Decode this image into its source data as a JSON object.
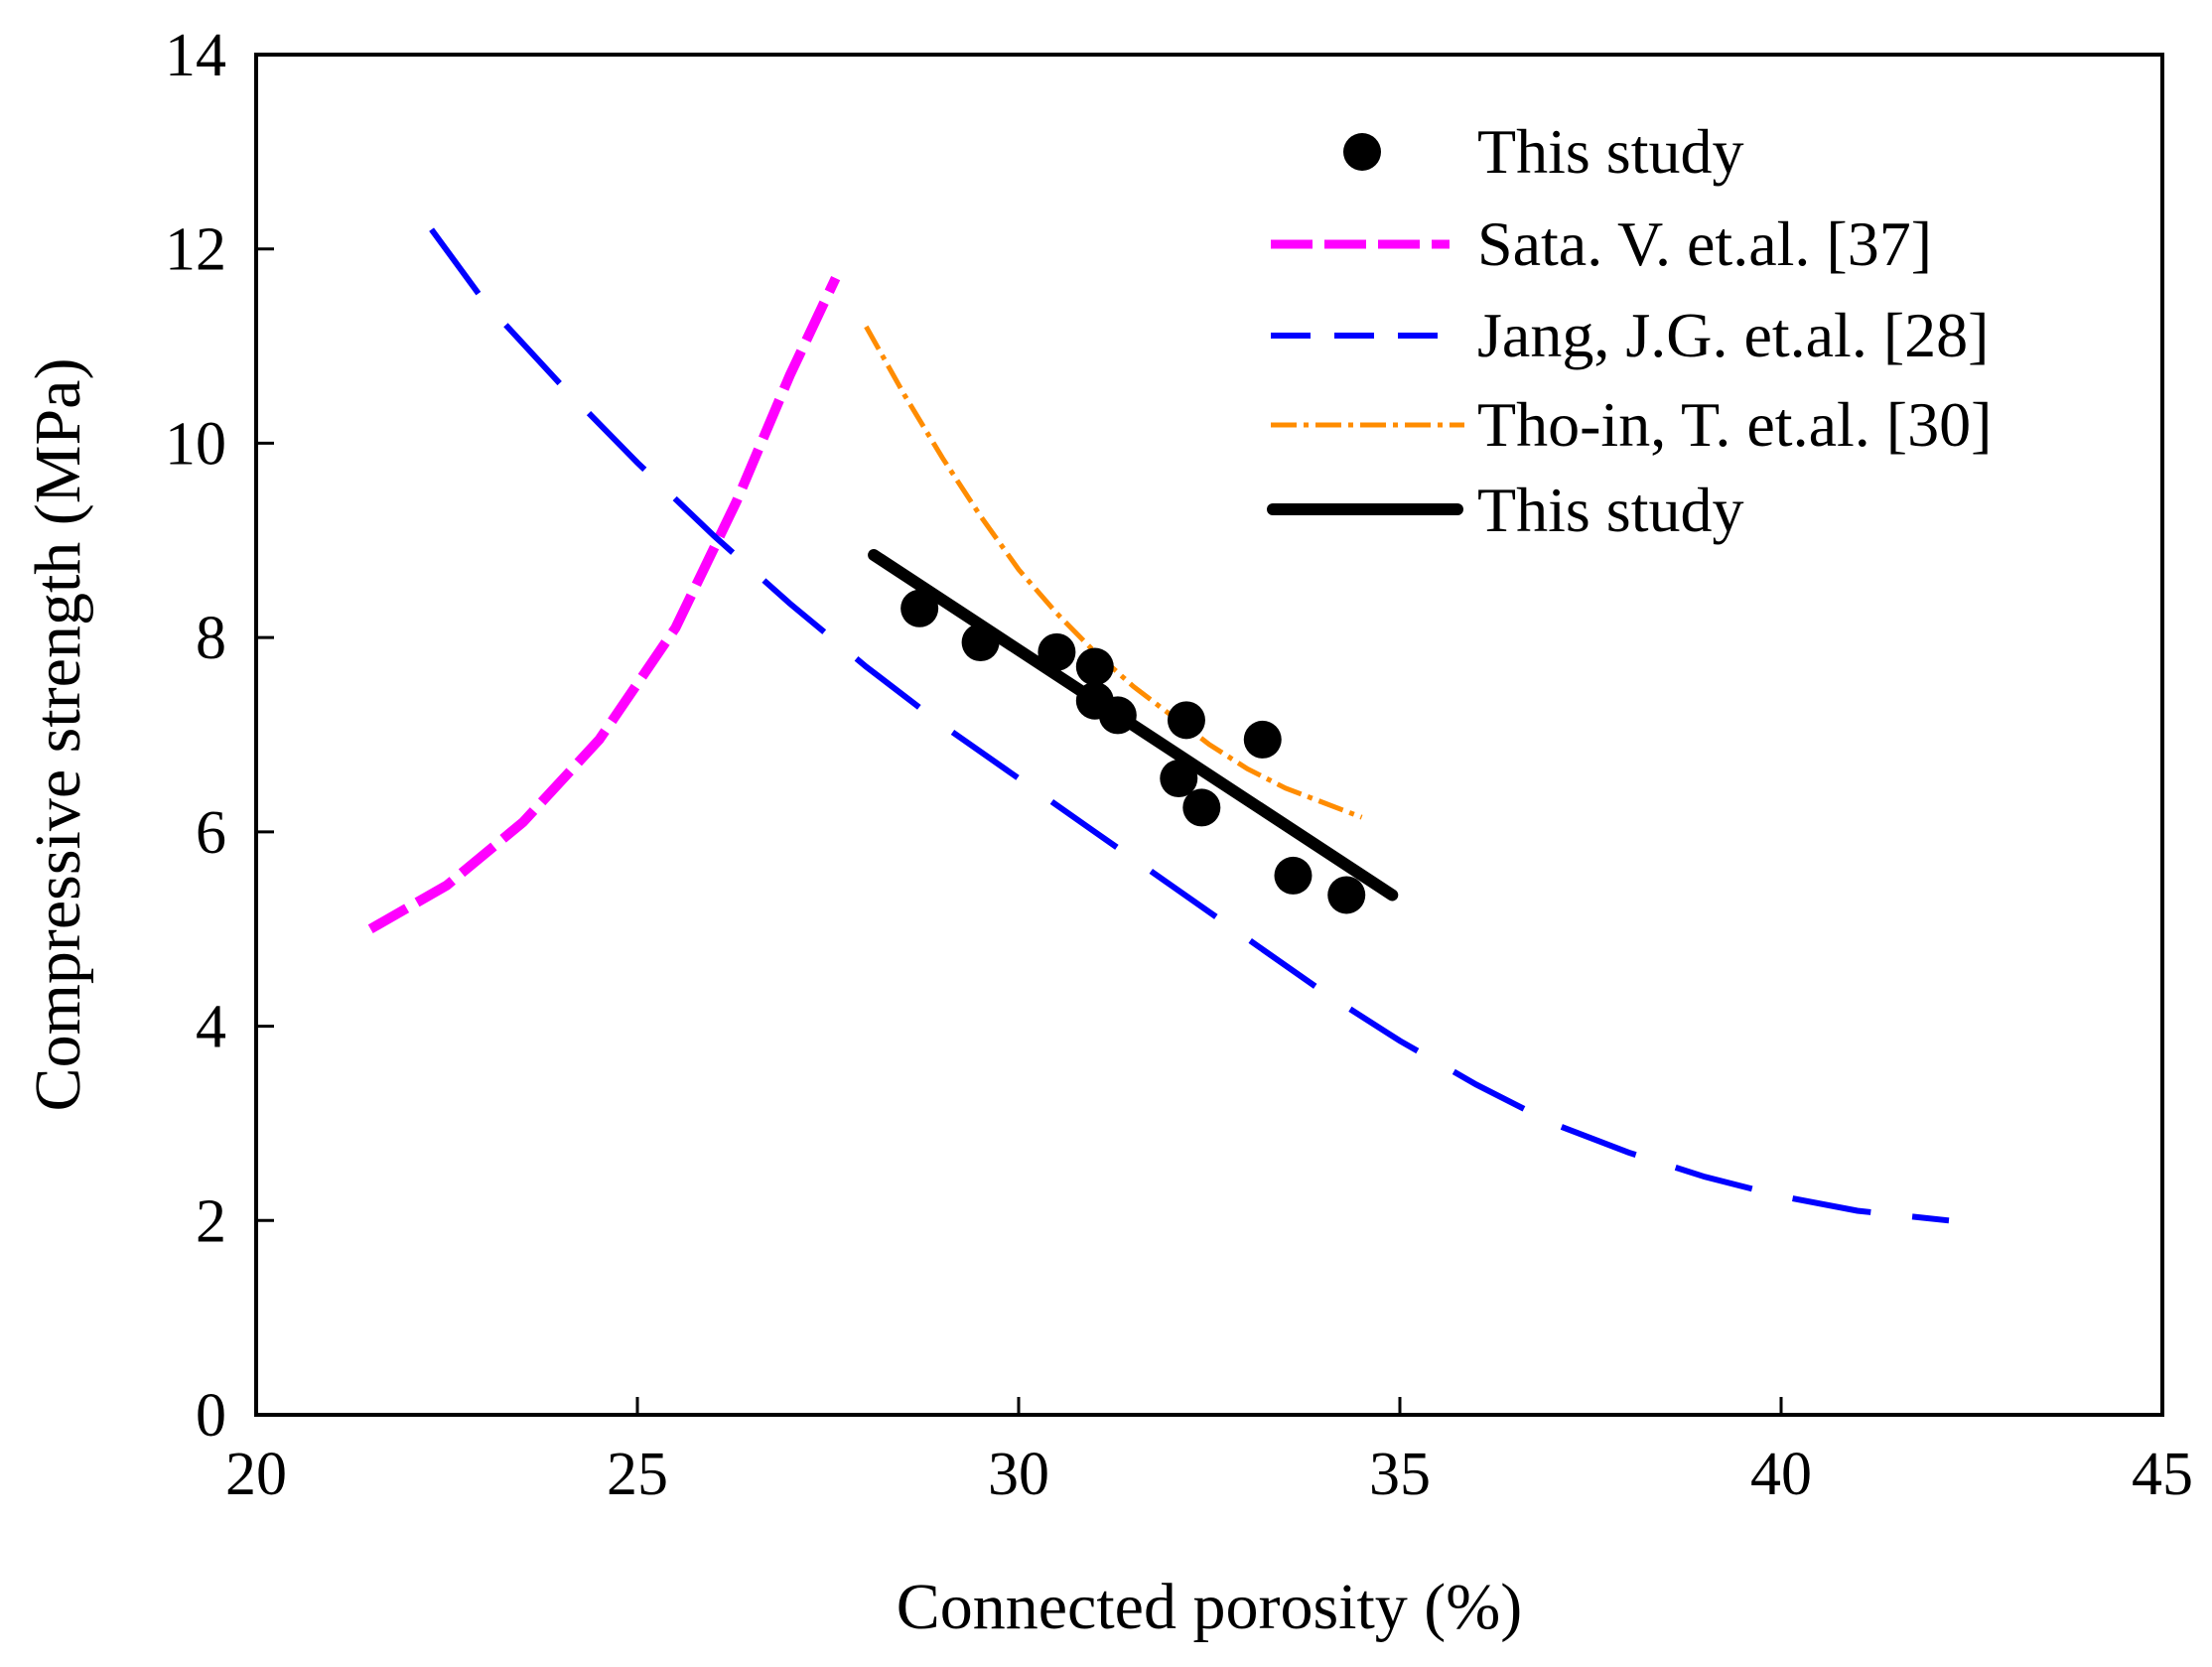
{
  "chart_data": {
    "type": "scatter",
    "title": "",
    "xlabel": "Connected porosity (%)",
    "ylabel": "Compressive strength (MPa)",
    "xlim": [
      20,
      45
    ],
    "ylim": [
      0,
      14
    ],
    "x_ticks": [
      20,
      25,
      30,
      35,
      40,
      45
    ],
    "y_ticks": [
      0,
      2,
      4,
      6,
      8,
      10,
      12,
      14
    ],
    "x_tick_labels": [
      "20",
      "25",
      "30",
      "35",
      "40",
      "45"
    ],
    "y_tick_labels": [
      "0",
      "2",
      "4",
      "6",
      "8",
      "10",
      "12",
      "14"
    ],
    "grid": false,
    "legend_position": "top-right",
    "series": [
      {
        "name": "This study",
        "kind": "points",
        "color": "#000000",
        "x": [
          28.7,
          29.5,
          30.5,
          31.0,
          31.0,
          31.3,
          32.1,
          32.2,
          32.4,
          33.2,
          33.6,
          34.3
        ],
        "y": [
          8.3,
          7.95,
          7.85,
          7.7,
          7.35,
          7.2,
          6.55,
          7.15,
          6.25,
          6.95,
          5.55,
          5.35
        ]
      },
      {
        "name": "Sata. V. et.al. [37]",
        "kind": "line",
        "style": "long-dash",
        "color": "#ff00ff",
        "x": [
          21.5,
          22.5,
          23.5,
          24.5,
          25.5,
          26.3,
          27.0,
          27.6
        ],
        "y": [
          5.0,
          5.45,
          6.1,
          6.95,
          8.1,
          9.4,
          10.7,
          11.7
        ]
      },
      {
        "name": "Jang, J.G. et.al. [28]",
        "kind": "line",
        "style": "dash",
        "color": "#0000ff",
        "x": [
          22.3,
          23,
          24,
          25,
          26,
          27,
          28,
          29,
          30,
          31,
          32,
          33,
          34,
          35,
          36,
          37,
          38,
          39,
          40,
          41,
          42.2
        ],
        "y": [
          12.2,
          11.45,
          10.6,
          9.8,
          9.05,
          8.35,
          7.7,
          7.1,
          6.55,
          6.0,
          5.45,
          4.9,
          4.35,
          3.85,
          3.4,
          3.0,
          2.7,
          2.45,
          2.25,
          2.1,
          2.0
        ]
      },
      {
        "name": "Tho-in, T. et.al. [30]",
        "kind": "line",
        "style": "dash-dot",
        "color": "#ff8c00",
        "x": [
          28.0,
          28.5,
          29.0,
          29.5,
          30.0,
          30.5,
          31.0,
          31.5,
          32.0,
          32.5,
          33.0,
          33.5,
          34.0,
          34.5
        ],
        "y": [
          11.2,
          10.5,
          9.85,
          9.25,
          8.7,
          8.25,
          7.85,
          7.5,
          7.2,
          6.9,
          6.65,
          6.45,
          6.3,
          6.15
        ]
      },
      {
        "name": "This study",
        "kind": "line",
        "style": "solid",
        "color": "#000000",
        "x": [
          28.1,
          34.9
        ],
        "y": [
          8.85,
          5.35
        ]
      }
    ]
  }
}
